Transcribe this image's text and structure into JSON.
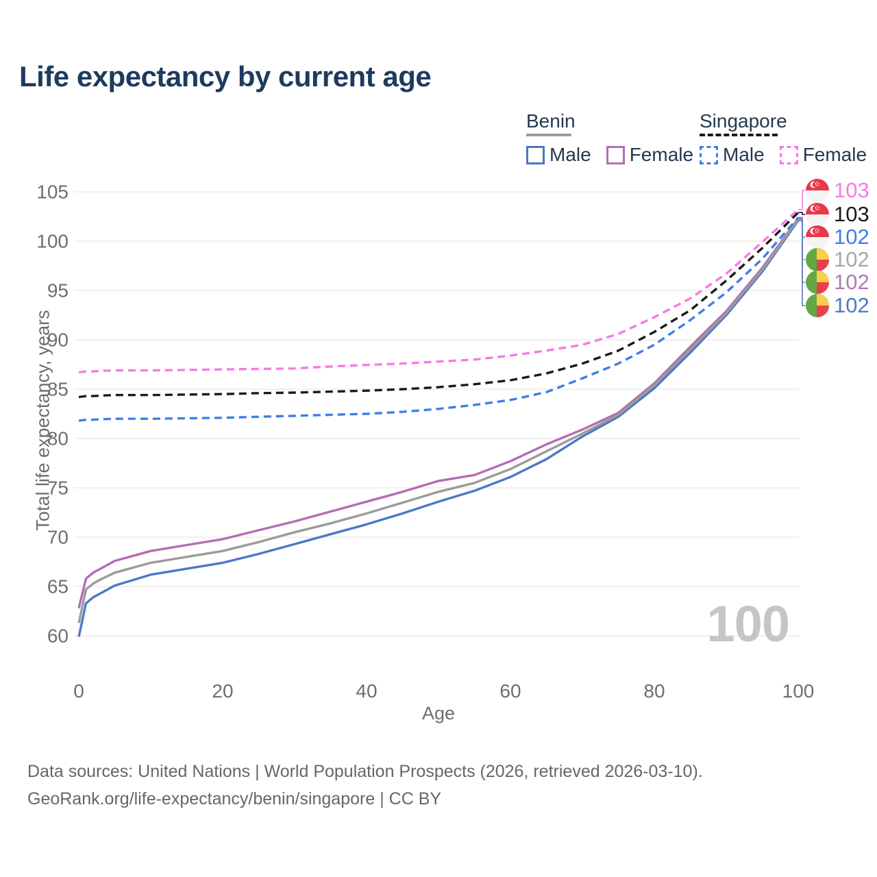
{
  "title": "Life expectancy by current age",
  "legend": {
    "benin": {
      "label": "Benin",
      "male_label": "Male",
      "female_label": "Female"
    },
    "singapore": {
      "label": "Singapore",
      "male_label": "Male",
      "female_label": "Female"
    }
  },
  "chart_data": {
    "type": "line",
    "title": "Life expectancy by current age",
    "xlabel": "Age",
    "ylabel": "Total life expectancy, years",
    "xlim": [
      0,
      100
    ],
    "ylim": [
      60,
      105
    ],
    "x_ticks": [
      0,
      20,
      40,
      60,
      80,
      100
    ],
    "y_ticks": [
      60,
      65,
      70,
      75,
      80,
      85,
      90,
      95,
      100,
      105
    ],
    "grid": "horizontal-only",
    "legend_position": "top-right",
    "watermark": "100",
    "x": [
      0,
      1,
      2,
      3,
      5,
      10,
      15,
      20,
      25,
      30,
      35,
      40,
      45,
      50,
      55,
      60,
      65,
      70,
      75,
      80,
      85,
      90,
      95,
      100
    ],
    "series": [
      {
        "name": "Singapore Female",
        "country": "Singapore",
        "sex": "female",
        "line": "dashed",
        "color": "#f879e5",
        "end_label": "103",
        "end_label_color": "#f879e5",
        "flag": "singapore",
        "values": [
          86.7,
          86.8,
          86.8,
          86.85,
          86.9,
          86.9,
          86.95,
          87.0,
          87.05,
          87.1,
          87.3,
          87.45,
          87.6,
          87.8,
          88.0,
          88.4,
          88.9,
          89.5,
          90.6,
          92.3,
          94.2,
          96.7,
          99.9,
          103.2
        ]
      },
      {
        "name": "Singapore Both sexes",
        "country": "Singapore",
        "sex": "both",
        "line": "dashed",
        "color": "#1a1a1a",
        "end_label": "103",
        "end_label_color": "#1a1a1a",
        "flag": "singapore",
        "values": [
          84.2,
          84.3,
          84.3,
          84.35,
          84.4,
          84.4,
          84.45,
          84.5,
          84.6,
          84.65,
          84.75,
          84.85,
          85.0,
          85.2,
          85.5,
          85.9,
          86.6,
          87.6,
          88.9,
          90.8,
          93.0,
          96.0,
          99.3,
          102.9
        ]
      },
      {
        "name": "Singapore Male",
        "country": "Singapore",
        "sex": "male",
        "line": "dashed",
        "color": "#3c7fe8",
        "end_label": "102",
        "end_label_color": "#3c7fe8",
        "flag": "singapore",
        "values": [
          81.8,
          81.9,
          81.9,
          81.95,
          82.0,
          82.0,
          82.05,
          82.1,
          82.2,
          82.3,
          82.4,
          82.5,
          82.7,
          83.0,
          83.4,
          83.9,
          84.7,
          86.1,
          87.6,
          89.5,
          92.0,
          94.8,
          98.2,
          102.4
        ]
      },
      {
        "name": "Benin Both sexes",
        "country": "Benin",
        "sex": "both",
        "line": "solid",
        "color": "#9b9b9b",
        "end_label": "102",
        "end_label_color": "#a8a8a8",
        "flag": "benin",
        "values": [
          61.3,
          64.7,
          65.3,
          65.7,
          66.4,
          67.4,
          68.0,
          68.6,
          69.5,
          70.5,
          71.4,
          72.4,
          73.5,
          74.6,
          75.5,
          76.9,
          78.7,
          80.5,
          82.4,
          85.4,
          89.0,
          92.7,
          97.1,
          102.2
        ]
      },
      {
        "name": "Benin Female",
        "country": "Benin",
        "sex": "female",
        "line": "solid",
        "color": "#b26db4",
        "end_label": "102",
        "end_label_color": "#b277b4",
        "flag": "benin",
        "values": [
          62.8,
          65.8,
          66.4,
          66.8,
          67.6,
          68.6,
          69.2,
          69.8,
          70.7,
          71.6,
          72.6,
          73.6,
          74.6,
          75.7,
          76.3,
          77.7,
          79.4,
          80.9,
          82.6,
          85.6,
          89.3,
          92.9,
          97.3,
          102.3
        ]
      },
      {
        "name": "Benin Male",
        "country": "Benin",
        "sex": "male",
        "line": "solid",
        "color": "#4d78c3",
        "end_label": "102",
        "end_label_color": "#4d78c3",
        "flag": "benin",
        "values": [
          59.9,
          63.3,
          63.9,
          64.3,
          65.1,
          66.2,
          66.8,
          67.4,
          68.3,
          69.3,
          70.3,
          71.3,
          72.4,
          73.6,
          74.7,
          76.1,
          77.9,
          80.2,
          82.2,
          85.1,
          88.7,
          92.5,
          96.9,
          102.1
        ]
      }
    ]
  },
  "colors": {
    "title": "#1d3b5e",
    "legend_text": "#24384f",
    "axis_text": "#6e6e6e",
    "gridline": "#e8e8e8",
    "watermark": "#c5c5c5",
    "footer_text": "#666666",
    "benin_underline": "#9b9b9b",
    "singapore_underline": "#1a1a1a"
  },
  "flags": {
    "singapore": {
      "red": "#e8384a",
      "white": "#f4f4f4"
    },
    "benin": {
      "green": "#63a844",
      "yellow": "#f8ce4b",
      "red": "#e8414b"
    }
  },
  "footer": {
    "line1": "Data sources: United Nations | World Population Prospects (2026, retrieved 2026-03-10).",
    "line2": "GeoRank.org/life-expectancy/benin/singapore | CC BY"
  }
}
